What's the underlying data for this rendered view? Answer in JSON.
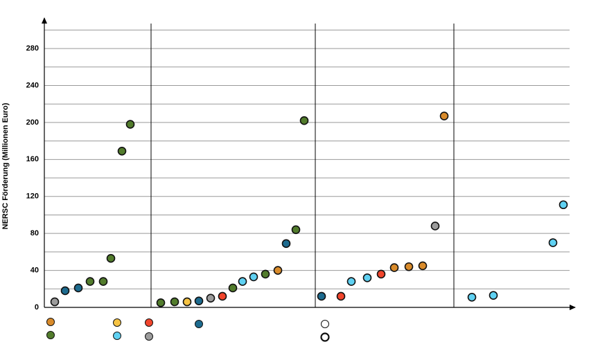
{
  "chart_data": {
    "type": "scatter",
    "y_label": "NERSC Förderung (Millionen Euro)",
    "ylim": [
      0,
      310
    ],
    "yticks": [
      0,
      40,
      80,
      120,
      160,
      200,
      240,
      280
    ],
    "minor_yticks": [
      20,
      60,
      100,
      140,
      180,
      220,
      260,
      300
    ],
    "grid": true,
    "xlim": [
      0,
      756
    ],
    "dividers": [
      154,
      391,
      591
    ],
    "series": [
      {
        "color": "#d98b2b",
        "x": [
          337,
          505,
          526,
          546,
          577
        ],
        "values": [
          40,
          43,
          44,
          45,
          207
        ]
      },
      {
        "color": "#527c2c",
        "x": [
          66,
          85,
          96,
          112,
          124,
          168,
          188,
          272,
          319,
          363,
          375
        ],
        "values": [
          28,
          28,
          53,
          169,
          198,
          5,
          6,
          21,
          36,
          84,
          202
        ]
      },
      {
        "color": "#f6c343",
        "x": [
          206
        ],
        "values": [
          6
        ]
      },
      {
        "color": "#5fd1f2",
        "x": [
          286,
          302,
          443,
          466,
          617,
          648,
          734,
          749
        ],
        "values": [
          28,
          33,
          28,
          32,
          11,
          13,
          70,
          111
        ]
      },
      {
        "color": "#f1452c",
        "x": [
          257,
          428,
          486
        ],
        "values": [
          12,
          12,
          36
        ]
      },
      {
        "color": "#9c9c9c",
        "x": [
          15,
          240,
          564
        ],
        "values": [
          6,
          10,
          88
        ]
      },
      {
        "color": "#1d6b8f",
        "x": [
          30,
          49,
          223,
          349,
          400
        ],
        "values": [
          18,
          21,
          7,
          69,
          12
        ]
      },
      {
        "color": "#ffffff",
        "x": [],
        "values": []
      },
      {
        "color": "#ffffff",
        "x": [],
        "values": []
      }
    ]
  }
}
